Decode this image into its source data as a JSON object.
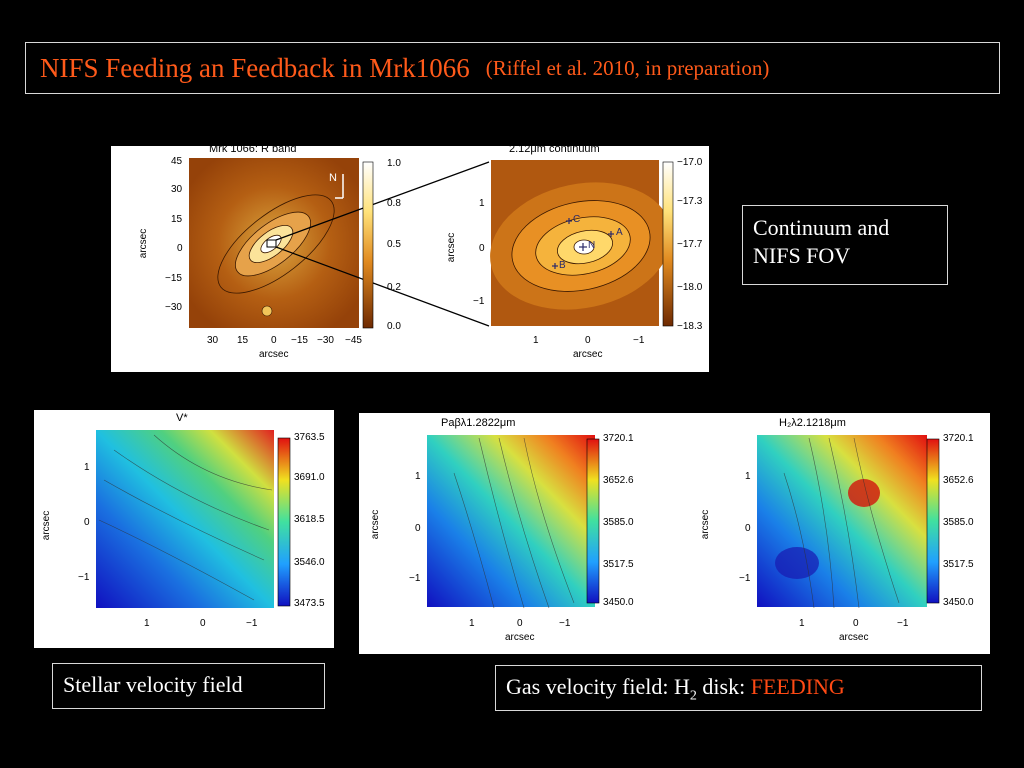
{
  "slide": {
    "title": "NIFS Feeding an Feedback in Mrk1066",
    "citation": "(Riffel et al. 2010, in preparation)"
  },
  "panels": {
    "rband": {
      "title": "Mrk 1066: R band",
      "y_ticks": [
        "45",
        "30",
        "15",
        "0",
        "−15",
        "−30"
      ],
      "x_ticks": [
        "30",
        "15",
        "0",
        "−15",
        "−30",
        "−45"
      ],
      "ylabel": "arcsec",
      "xlabel": "arcsec",
      "north_label": "N",
      "colorbar_ticks": [
        "1.0",
        "0.8",
        "0.5",
        "0.2",
        "0.0"
      ]
    },
    "continuum": {
      "title": "2.12μm continuum",
      "y_ticks": [
        "1",
        "0",
        "−1"
      ],
      "x_ticks": [
        "1",
        "0",
        "−1"
      ],
      "ylabel": "arcsec",
      "xlabel": "arcsec",
      "markers": [
        "C",
        "A",
        "N",
        "B"
      ],
      "colorbar_ticks": [
        "−17.0",
        "−17.3",
        "−17.7",
        "−18.0",
        "−18.3"
      ]
    },
    "stellar": {
      "title": "V*",
      "y_ticks": [
        "1",
        "0",
        "−1"
      ],
      "x_ticks": [
        "1",
        "0",
        "−1"
      ],
      "ylabel": "arcsec",
      "colorbar_ticks": [
        "3763.5",
        "3691.0",
        "3618.5",
        "3546.0",
        "3473.5"
      ]
    },
    "pabeta": {
      "title": "Paβλ1.2822μm",
      "y_ticks": [
        "1",
        "0",
        "−1"
      ],
      "x_ticks": [
        "1",
        "0",
        "−1"
      ],
      "ylabel": "arcsec",
      "xlabel": "arcsec",
      "colorbar_ticks": [
        "3720.1",
        "3652.6",
        "3585.0",
        "3517.5",
        "3450.0"
      ]
    },
    "h2": {
      "title": "H₂λ2.1218μm",
      "y_ticks": [
        "1",
        "0",
        "−1"
      ],
      "x_ticks": [
        "1",
        "0",
        "−1"
      ],
      "ylabel": "arcsec",
      "xlabel": "arcsec",
      "colorbar_ticks": [
        "3720.1",
        "3652.6",
        "3585.0",
        "3517.5",
        "3450.0"
      ]
    }
  },
  "captions": {
    "continuum_line1": "Continuum and",
    "continuum_line2": "NIFS FOV",
    "stellar": "Stellar velocity field",
    "gas_prefix": "Gas velocity field: H",
    "gas_sub": "2",
    "gas_mid": " disk: ",
    "gas_highlight": "FEEDING"
  },
  "colors": {
    "title": "#ff5a1a",
    "highlight": "#ff4a14",
    "background": "#000000"
  }
}
